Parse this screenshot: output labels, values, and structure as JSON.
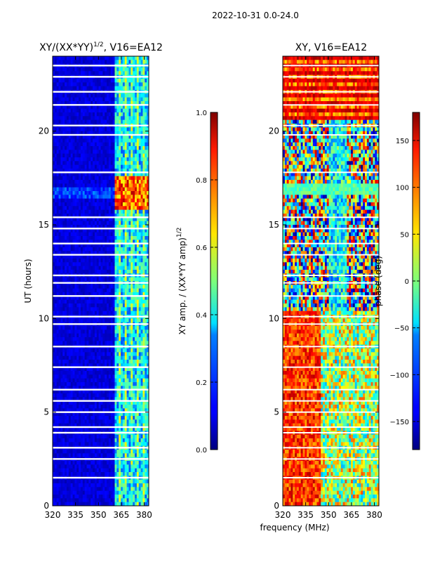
{
  "suptitle": "2022-10-31 0.0-24.0",
  "shared": {
    "xlabel": "frequency (MHz)",
    "xlim": [
      320,
      383
    ],
    "ylim": [
      0,
      24
    ],
    "x_ticks": [
      320,
      335,
      350,
      365,
      380
    ],
    "y_ticks": [
      0,
      5,
      10,
      15,
      20
    ]
  },
  "chart_data": [
    {
      "type": "heatmap",
      "title_main": "XY/(XX*YY)",
      "title_sup": "1/2",
      "title_rest": ", V16=EA12",
      "ylabel": "UT (hours)",
      "xlim": [
        320,
        383
      ],
      "ylim": [
        0,
        24
      ],
      "colorbar": {
        "label_main": "XY amp. / (XX*YY amp)",
        "label_sup": "1/2",
        "range": [
          0.0,
          1.0
        ],
        "ticks": [
          "0.0",
          "0.2",
          "0.4",
          "0.6",
          "0.8",
          "1.0"
        ]
      },
      "regions": [
        {
          "freq": [
            320,
            361
          ],
          "hours": [
            0,
            24
          ],
          "value": 0.08,
          "note": "low coherence"
        },
        {
          "freq": [
            361,
            383
          ],
          "hours": [
            0,
            24
          ],
          "value": 0.35,
          "note": "striped channels"
        },
        {
          "freq": [
            361,
            383
          ],
          "hours": [
            15.8,
            17.6
          ],
          "value": 0.75,
          "note": "high coherence burst"
        }
      ],
      "gap_hours": [
        1.5,
        2.5,
        3.1,
        3.9,
        4.2,
        5.0,
        5.6,
        6.2,
        7.4,
        8.5,
        9.7,
        10.1,
        11.2,
        11.9,
        12.3,
        13.4,
        14.0,
        14.8,
        15.4,
        17.8,
        19.8,
        20.3,
        21.4,
        22.1,
        22.9,
        23.5
      ]
    },
    {
      "type": "heatmap",
      "title": "XY, V16=EA12",
      "xlim": [
        320,
        383
      ],
      "ylim": [
        0,
        24
      ],
      "colorbar": {
        "label": "phase (deg)",
        "range": [
          -180,
          180
        ],
        "ticks": [
          "−150",
          "−100",
          "−50",
          "0",
          "50",
          "100",
          "150"
        ],
        "tick_values": [
          -150,
          -100,
          -50,
          0,
          50,
          100,
          150
        ]
      },
      "regions": [
        {
          "freq": [
            320,
            345
          ],
          "hours": [
            0,
            10
          ],
          "value": 150,
          "note": "red/orange phase"
        },
        {
          "freq": [
            345,
            383
          ],
          "hours": [
            0,
            10
          ],
          "value": 0,
          "note": "mixed green/yellow"
        },
        {
          "freq": [
            320,
            383
          ],
          "hours": [
            16.5,
            17.2
          ],
          "value": 20,
          "note": "cyan band"
        },
        {
          "freq": [
            320,
            383
          ],
          "hours": [
            20.5,
            24
          ],
          "value": 170,
          "note": "red stripes"
        }
      ],
      "gap_hours": [
        1.5,
        2.5,
        3.1,
        3.9,
        4.2,
        5.0,
        5.6,
        6.2,
        7.4,
        8.5,
        9.7,
        10.1,
        11.2,
        11.9,
        12.3,
        13.4,
        14.0,
        14.8,
        15.4,
        17.8,
        19.8,
        20.3,
        21.4,
        22.1,
        22.9,
        23.5
      ]
    }
  ]
}
